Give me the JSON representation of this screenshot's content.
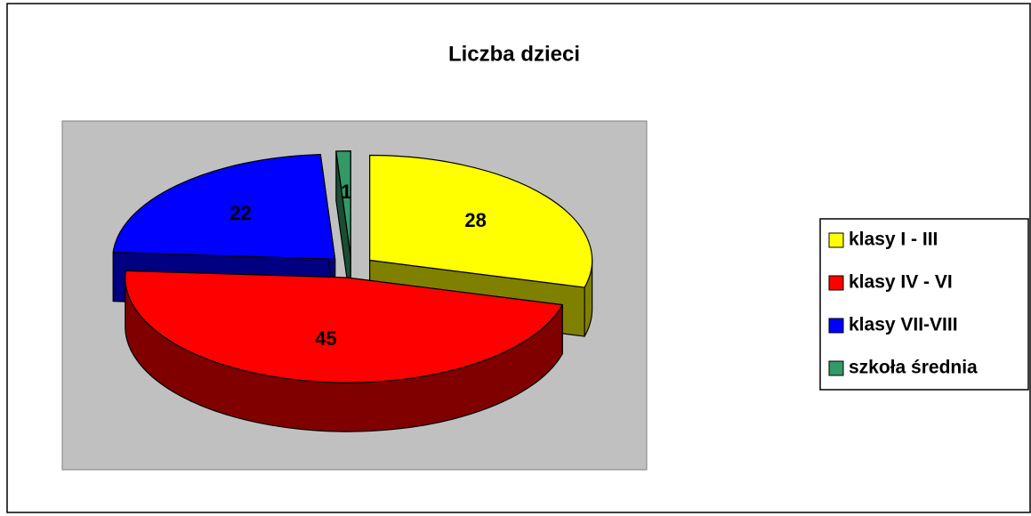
{
  "chart_data": {
    "type": "pie",
    "title": "Liczba dzieci",
    "categories": [
      "klasy I - III",
      "klasy IV - VI",
      "klasy VII-VIII",
      "szkoła średnia"
    ],
    "values": [
      28,
      45,
      22,
      1
    ],
    "colors": [
      "#ffff00",
      "#ff0000",
      "#0000ff",
      "#339966"
    ],
    "legend": "right"
  }
}
